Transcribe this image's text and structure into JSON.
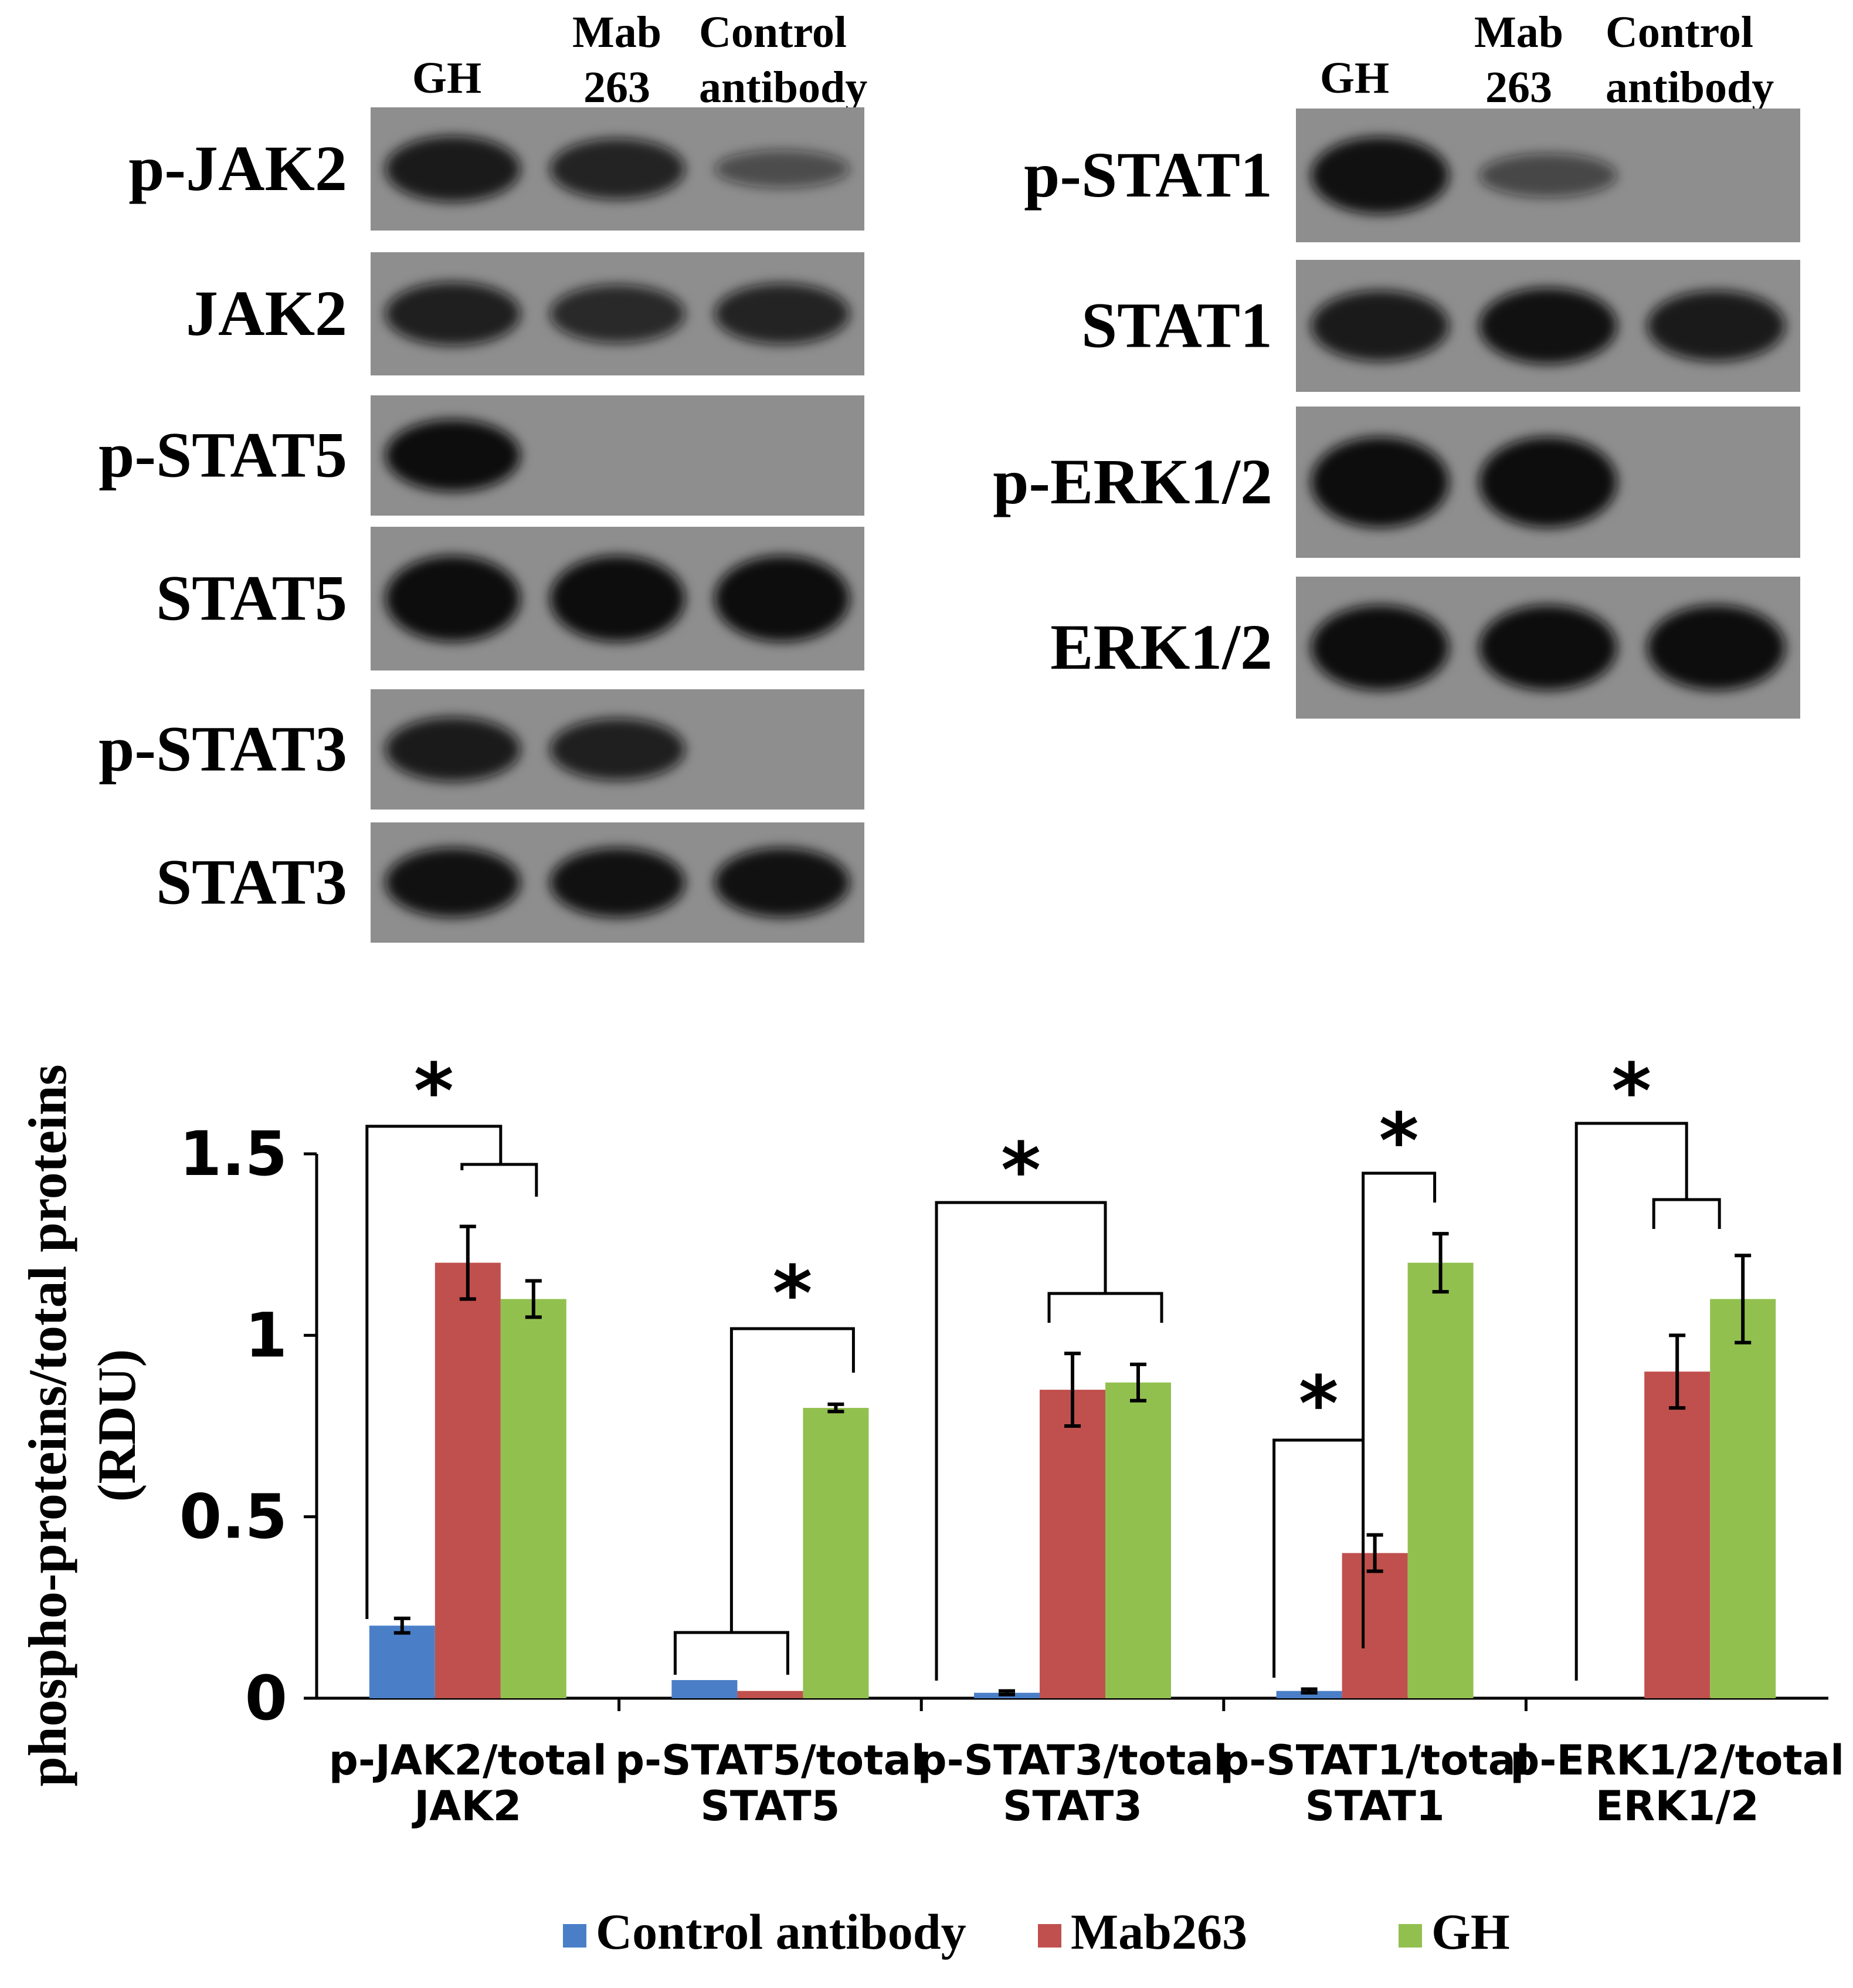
{
  "blots": {
    "left": {
      "lane_headers": [
        {
          "lines": [
            "GH"
          ]
        },
        {
          "lines": [
            "Mab",
            "263"
          ]
        },
        {
          "lines": [
            "Control",
            "antibody"
          ]
        }
      ],
      "rows": [
        {
          "label": "p-JAK2",
          "bands": [
            0.85,
            0.75,
            0.3
          ]
        },
        {
          "label": "JAK2",
          "bands": [
            0.8,
            0.7,
            0.75
          ]
        },
        {
          "label": "p-STAT5",
          "bands": [
            1.0,
            0.0,
            0.0
          ]
        },
        {
          "label": "STAT5",
          "bands": [
            1.0,
            1.0,
            1.0
          ]
        },
        {
          "label": "p-STAT3",
          "bands": [
            0.85,
            0.8,
            0.0
          ]
        },
        {
          "label": "STAT3",
          "bands": [
            0.95,
            0.95,
            0.95
          ]
        }
      ]
    },
    "right": {
      "lane_headers": [
        {
          "lines": [
            "GH"
          ]
        },
        {
          "lines": [
            "Mab",
            "263"
          ]
        },
        {
          "lines": [
            "Control",
            "antibody"
          ]
        }
      ],
      "rows": [
        {
          "label": "p-STAT1",
          "bands": [
            0.95,
            0.35,
            0.0
          ]
        },
        {
          "label": "STAT1",
          "bands": [
            0.85,
            0.95,
            0.85
          ]
        },
        {
          "label": "p-ERK1/2",
          "bands": [
            1.0,
            1.0,
            0.0
          ]
        },
        {
          "label": "ERK1/2",
          "bands": [
            1.0,
            1.0,
            1.0
          ]
        }
      ]
    }
  },
  "chart_data": {
    "type": "bar",
    "ylabel_lines": [
      "phospho-proteins/total proteins",
      "(RDU)"
    ],
    "ylim": [
      0,
      1.5
    ],
    "yticks": [
      "0",
      "0.5",
      "1",
      "1.5"
    ],
    "categories": [
      [
        "p-JAK2/total",
        "JAK2"
      ],
      [
        "p-STAT5/total",
        "STAT5"
      ],
      [
        "p-STAT3/total",
        "STAT3"
      ],
      [
        "p-STAT1/total",
        "STAT1"
      ],
      [
        "p-ERK1/2/total",
        "ERK1/2"
      ]
    ],
    "series": [
      {
        "name": "Control antibody",
        "color": "#4a7fc8",
        "values": [
          0.2,
          0.05,
          0.015,
          0.02,
          0.0
        ],
        "errors": [
          0.02,
          0.0,
          0.005,
          0.005,
          0.0
        ]
      },
      {
        "name": "Mab263",
        "color": "#c0504d",
        "values": [
          1.2,
          0.02,
          0.85,
          0.4,
          0.9
        ],
        "errors": [
          0.1,
          0.0,
          0.1,
          0.05,
          0.1
        ]
      },
      {
        "name": "GH",
        "color": "#92c04f",
        "values": [
          1.1,
          0.8,
          0.87,
          1.2,
          1.1
        ],
        "errors": [
          0.05,
          0.01,
          0.05,
          0.08,
          0.12
        ]
      }
    ],
    "significance_marker": "*",
    "legend_position": "bottom"
  }
}
